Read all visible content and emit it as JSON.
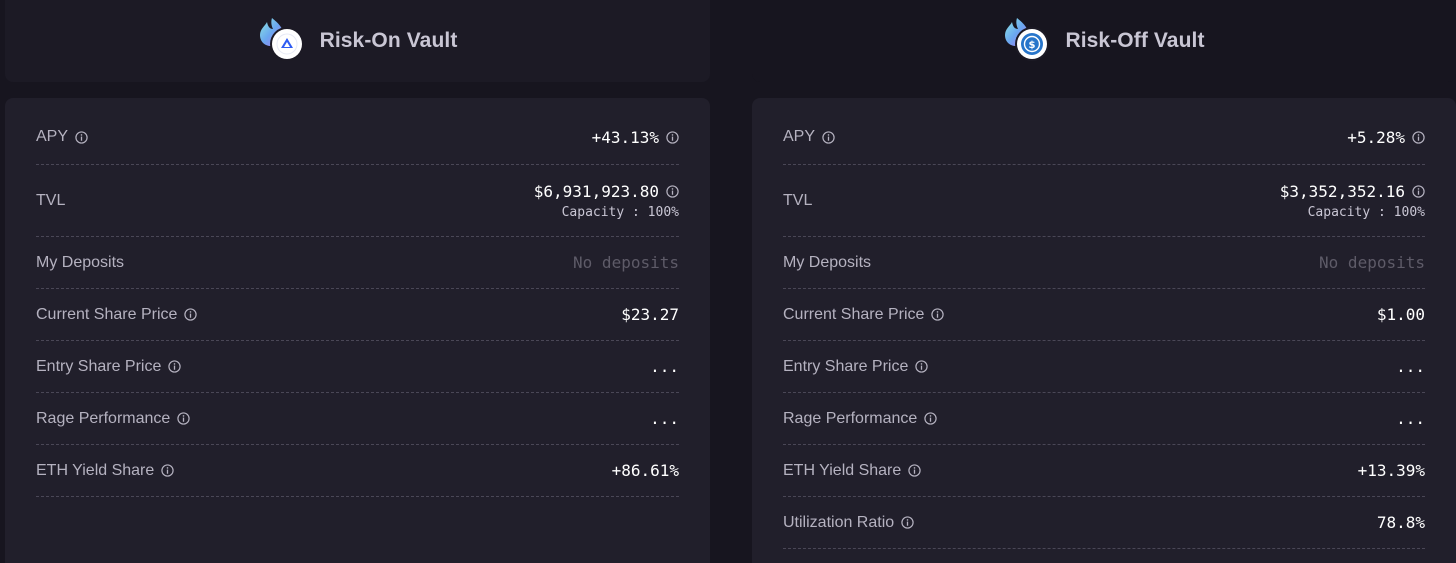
{
  "vaults": [
    {
      "title": "Risk-On Vault",
      "logo_icon": "triangle-token-icon",
      "rows": {
        "apy": {
          "label": "APY",
          "value": "+43.13%"
        },
        "tvl": {
          "label": "TVL",
          "value": "$6,931,923.80",
          "capacity": "Capacity : 100%"
        },
        "deposits": {
          "label": "My Deposits",
          "value": "No deposits"
        },
        "current_share_price": {
          "label": "Current Share Price",
          "value": "$23.27"
        },
        "entry_share_price": {
          "label": "Entry Share Price",
          "value": "..."
        },
        "rage_performance": {
          "label": "Rage Performance",
          "value": "..."
        },
        "eth_yield_share": {
          "label": "ETH Yield Share",
          "value": "+86.61%"
        }
      }
    },
    {
      "title": "Risk-Off Vault",
      "logo_icon": "usdc-token-icon",
      "rows": {
        "apy": {
          "label": "APY",
          "value": "+5.28%"
        },
        "tvl": {
          "label": "TVL",
          "value": "$3,352,352.16",
          "capacity": "Capacity : 100%"
        },
        "deposits": {
          "label": "My Deposits",
          "value": "No deposits"
        },
        "current_share_price": {
          "label": "Current Share Price",
          "value": "$1.00"
        },
        "entry_share_price": {
          "label": "Entry Share Price",
          "value": "..."
        },
        "rage_performance": {
          "label": "Rage Performance",
          "value": "..."
        },
        "eth_yield_share": {
          "label": "ETH Yield Share",
          "value": "+13.39%"
        },
        "utilization_ratio": {
          "label": "Utilization Ratio",
          "value": "78.8%"
        }
      }
    }
  ],
  "colors": {
    "background": "#17151f",
    "card": "#211f2b",
    "label_text": "#b5b2c0",
    "value_text": "#ffffff",
    "muted_text": "#5e5b68",
    "divider": "#4a4756",
    "triangle_token": "#2f5cf2",
    "usdc_token": "#2775ca"
  }
}
